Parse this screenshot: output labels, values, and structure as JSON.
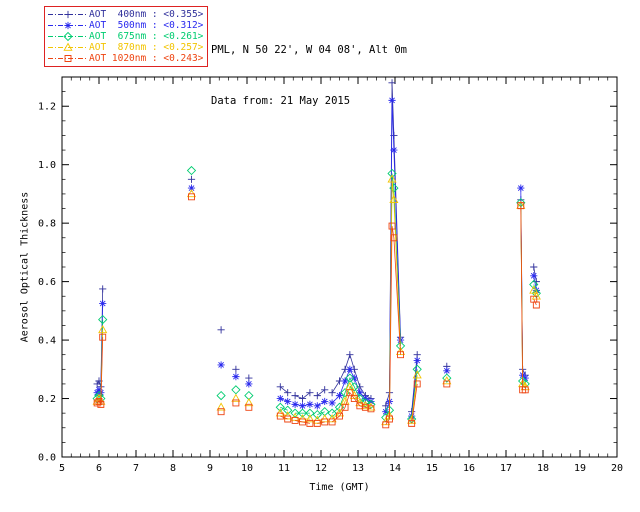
{
  "header": {
    "site_line": "PML, N 50 22', W 04 08', Alt 0m",
    "date_line": "Data from: 21 May 2015"
  },
  "legend": {
    "border_color": "#dd2222"
  },
  "chart_data": {
    "type": "scatter",
    "title": "",
    "xlabel": "Time (GMT)",
    "ylabel": "Aerosol Optical Thickness",
    "xlim": [
      5,
      20
    ],
    "ylim": [
      0,
      1.3
    ],
    "xticks": [
      5,
      6,
      7,
      8,
      9,
      10,
      11,
      12,
      13,
      14,
      15,
      16,
      17,
      18,
      19,
      20
    ],
    "yticks": [
      0.0,
      0.2,
      0.4,
      0.6,
      0.8,
      1.0,
      1.2
    ],
    "x_minor": 0.25,
    "y_minor": 0.05,
    "gap_threshold": 0.2,
    "grid": false,
    "legend_position": "top-left",
    "x": [
      5.95,
      6.0,
      6.05,
      6.1,
      8.5,
      9.3,
      9.7,
      10.05,
      10.9,
      11.1,
      11.3,
      11.5,
      11.7,
      11.9,
      12.1,
      12.3,
      12.5,
      12.65,
      12.78,
      12.9,
      13.05,
      13.2,
      13.35,
      13.75,
      13.85,
      13.92,
      13.97,
      14.15,
      14.45,
      14.6,
      15.4,
      17.4,
      17.45,
      17.52,
      17.75,
      17.82
    ],
    "series": [
      {
        "id": "400nm",
        "name": "AOT  400nm",
        "mean": "<0.355>",
        "color": "#31319c",
        "symbol": "plus",
        "values": [
          0.25,
          0.26,
          0.24,
          0.575,
          0.95,
          0.435,
          0.3,
          0.27,
          0.24,
          0.22,
          0.21,
          0.2,
          0.22,
          0.21,
          0.23,
          0.22,
          0.26,
          0.3,
          0.35,
          0.3,
          0.24,
          0.21,
          0.2,
          0.175,
          0.22,
          1.28,
          1.1,
          0.41,
          0.155,
          0.35,
          0.31,
          0.88,
          0.3,
          0.28,
          0.65,
          0.6
        ]
      },
      {
        "id": "500nm",
        "name": "AOT  500nm",
        "mean": "<0.312>",
        "color": "#2a2aee",
        "symbol": "asterisk",
        "values": [
          0.22,
          0.23,
          0.22,
          0.525,
          0.92,
          0.315,
          0.275,
          0.25,
          0.2,
          0.19,
          0.18,
          0.175,
          0.18,
          0.175,
          0.19,
          0.185,
          0.21,
          0.26,
          0.3,
          0.27,
          0.22,
          0.2,
          0.19,
          0.155,
          0.19,
          1.22,
          1.05,
          0.4,
          0.14,
          0.33,
          0.295,
          0.92,
          0.28,
          0.27,
          0.62,
          0.57
        ]
      },
      {
        "id": "675nm",
        "name": "AOT  675nm",
        "mean": "<0.261>",
        "color": "#00cc70",
        "symbol": "diamond",
        "values": [
          0.2,
          0.21,
          0.2,
          0.47,
          0.98,
          0.21,
          0.23,
          0.21,
          0.17,
          0.16,
          0.15,
          0.15,
          0.15,
          0.145,
          0.155,
          0.15,
          0.17,
          0.22,
          0.27,
          0.24,
          0.2,
          0.185,
          0.18,
          0.135,
          0.16,
          0.97,
          0.92,
          0.38,
          0.13,
          0.3,
          0.27,
          0.87,
          0.26,
          0.25,
          0.59,
          0.56
        ]
      },
      {
        "id": "870nm",
        "name": "AOT  870nm",
        "mean": "<0.257>",
        "color": "#f2c400",
        "symbol": "triangle",
        "values": [
          0.19,
          0.2,
          0.19,
          0.435,
          0.9,
          0.17,
          0.2,
          0.185,
          0.15,
          0.14,
          0.135,
          0.13,
          0.13,
          0.125,
          0.13,
          0.13,
          0.15,
          0.19,
          0.24,
          0.21,
          0.185,
          0.175,
          0.17,
          0.12,
          0.14,
          0.95,
          0.88,
          0.36,
          0.125,
          0.28,
          0.26,
          0.86,
          0.25,
          0.24,
          0.57,
          0.55
        ]
      },
      {
        "id": "1020nm",
        "name": "AOT 1020nm",
        "mean": "<0.243>",
        "color": "#ee4411",
        "symbol": "square",
        "values": [
          0.185,
          0.19,
          0.18,
          0.41,
          0.89,
          0.155,
          0.185,
          0.17,
          0.14,
          0.13,
          0.125,
          0.12,
          0.115,
          0.115,
          0.12,
          0.12,
          0.14,
          0.17,
          0.22,
          0.2,
          0.175,
          0.17,
          0.165,
          0.11,
          0.13,
          0.79,
          0.75,
          0.35,
          0.115,
          0.25,
          0.25,
          0.86,
          0.23,
          0.23,
          0.54,
          0.52
        ]
      }
    ]
  }
}
